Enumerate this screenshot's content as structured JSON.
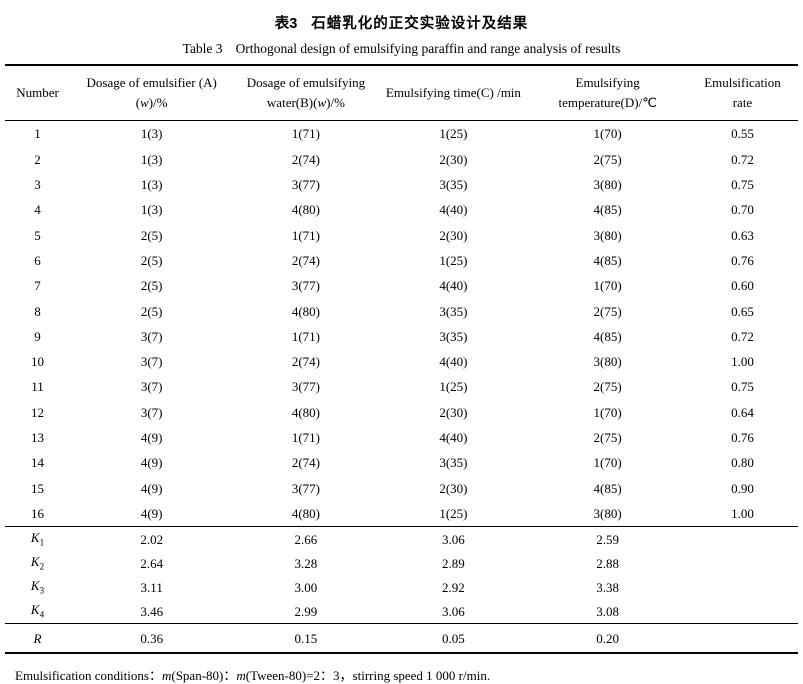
{
  "page": {
    "title_zh_label": "表3",
    "title_zh": "石蜡乳化的正交实验设计及结果",
    "title_en_label": "Table 3",
    "title_en": "Orthogonal design of emulsifying paraffin and range analysis of results"
  },
  "table": {
    "columns": [
      {
        "id": "number",
        "width": "8.2%",
        "lines": [
          "Number"
        ]
      },
      {
        "id": "emulsifier-dosage",
        "width": "20.6%",
        "lines": [
          "Dosage of emulsifier (A)",
          "(w)/%"
        ]
      },
      {
        "id": "water-dosage",
        "width": "18.3%",
        "lines": [
          "Dosage of emulsifying",
          "water(B)(w)/%"
        ]
      },
      {
        "id": "emulsifying-time",
        "width": "18.9%",
        "lines": [
          "Emulsifying time(C) /min"
        ]
      },
      {
        "id": "emulsifying-temperature",
        "width": "20.0%",
        "lines": [
          "Emulsifying",
          "temperature(D)/℃"
        ]
      },
      {
        "id": "emulsification-rate",
        "width": "14.0%",
        "lines": [
          "Emulsification",
          "rate"
        ]
      }
    ],
    "rows": [
      [
        "1",
        "1(3)",
        "1(71)",
        "1(25)",
        "1(70)",
        "0.55"
      ],
      [
        "2",
        "1(3)",
        "2(74)",
        "2(30)",
        "2(75)",
        "0.72"
      ],
      [
        "3",
        "1(3)",
        "3(77)",
        "3(35)",
        "3(80)",
        "0.75"
      ],
      [
        "4",
        "1(3)",
        "4(80)",
        "4(40)",
        "4(85)",
        "0.70"
      ],
      [
        "5",
        "2(5)",
        "1(71)",
        "2(30)",
        "3(80)",
        "0.63"
      ],
      [
        "6",
        "2(5)",
        "2(74)",
        "1(25)",
        "4(85)",
        "0.76"
      ],
      [
        "7",
        "2(5)",
        "3(77)",
        "4(40)",
        "1(70)",
        "0.60"
      ],
      [
        "8",
        "2(5)",
        "4(80)",
        "3(35)",
        "2(75)",
        "0.65"
      ],
      [
        "9",
        "3(7)",
        "1(71)",
        "3(35)",
        "4(85)",
        "0.72"
      ],
      [
        "10",
        "3(7)",
        "2(74)",
        "4(40)",
        "3(80)",
        "1.00"
      ],
      [
        "11",
        "3(7)",
        "3(77)",
        "1(25)",
        "2(75)",
        "0.75"
      ],
      [
        "12",
        "3(7)",
        "4(80)",
        "2(30)",
        "1(70)",
        "0.64"
      ],
      [
        "13",
        "4(9)",
        "1(71)",
        "4(40)",
        "2(75)",
        "0.76"
      ],
      [
        "14",
        "4(9)",
        "2(74)",
        "3(35)",
        "1(70)",
        "0.80"
      ],
      [
        "15",
        "4(9)",
        "3(77)",
        "2(30)",
        "4(85)",
        "0.90"
      ],
      [
        "16",
        "4(9)",
        "4(80)",
        "1(25)",
        "3(80)",
        "1.00"
      ]
    ],
    "k_rows": [
      {
        "label": "K",
        "sub": "1",
        "values": [
          "2.02",
          "2.66",
          "3.06",
          "2.59",
          ""
        ]
      },
      {
        "label": "K",
        "sub": "2",
        "values": [
          "2.64",
          "3.28",
          "2.89",
          "2.88",
          ""
        ]
      },
      {
        "label": "K",
        "sub": "3",
        "values": [
          "3.11",
          "3.00",
          "2.92",
          "3.38",
          ""
        ]
      },
      {
        "label": "K",
        "sub": "4",
        "values": [
          "3.46",
          "2.99",
          "3.06",
          "3.08",
          ""
        ]
      }
    ],
    "r_row": {
      "label": "R",
      "sub": "",
      "values": [
        "0.36",
        "0.15",
        "0.05",
        "0.20",
        ""
      ]
    }
  },
  "footnote": {
    "segments": [
      {
        "text": "Emulsification conditions：",
        "italic": false
      },
      {
        "text": "m",
        "italic": true
      },
      {
        "text": "(Span-80)：",
        "italic": false
      },
      {
        "text": "m",
        "italic": true
      },
      {
        "text": "(Tween-80)=2：3，stirring speed 1 000 r/min.",
        "italic": false
      }
    ]
  }
}
